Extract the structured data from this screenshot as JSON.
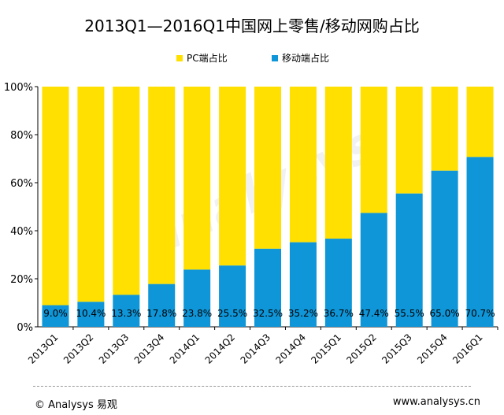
{
  "chart_data": {
    "type": "bar",
    "stacked": true,
    "percent": true,
    "title": "2013Q1—2016Q1中国网上零售/移动网购占比",
    "categories": [
      "2013Q1",
      "2013Q2",
      "2013Q3",
      "2013Q4",
      "2014Q1",
      "2014Q2",
      "2014Q3",
      "2014Q4",
      "2015Q1",
      "2015Q2",
      "2015Q3",
      "2015Q4",
      "2016Q1"
    ],
    "series": [
      {
        "name": "移动端占比",
        "color": "#0f96d8",
        "values": [
          9.0,
          10.4,
          13.3,
          17.8,
          23.8,
          25.5,
          32.5,
          35.2,
          36.7,
          47.4,
          55.5,
          65.0,
          70.7
        ],
        "labels": [
          "9.0%",
          "10.4%",
          "13.3%",
          "17.8%",
          "23.8%",
          "25.5%",
          "32.5%",
          "35.2%",
          "36.7%",
          "47.4%",
          "55.5%",
          "65.0%",
          "70.7%"
        ]
      },
      {
        "name": "PC端占比",
        "color": "#ffe000",
        "values": [
          91.0,
          89.6,
          86.7,
          82.2,
          76.2,
          74.5,
          67.5,
          64.8,
          63.3,
          52.6,
          44.5,
          35.0,
          29.3
        ]
      }
    ],
    "legend_order": [
      "PC端占比",
      "移动端占比"
    ],
    "legend_position": "top",
    "ylim": [
      0,
      100
    ],
    "yticks": [
      0,
      20,
      40,
      60,
      80,
      100
    ],
    "ytick_labels": [
      "0%",
      "20%",
      "40%",
      "60%",
      "80%",
      "100%"
    ],
    "watermark": "analysys",
    "grid": false
  },
  "footer": {
    "source": "© Analysys 易观",
    "url": "www.analysys.cn"
  }
}
